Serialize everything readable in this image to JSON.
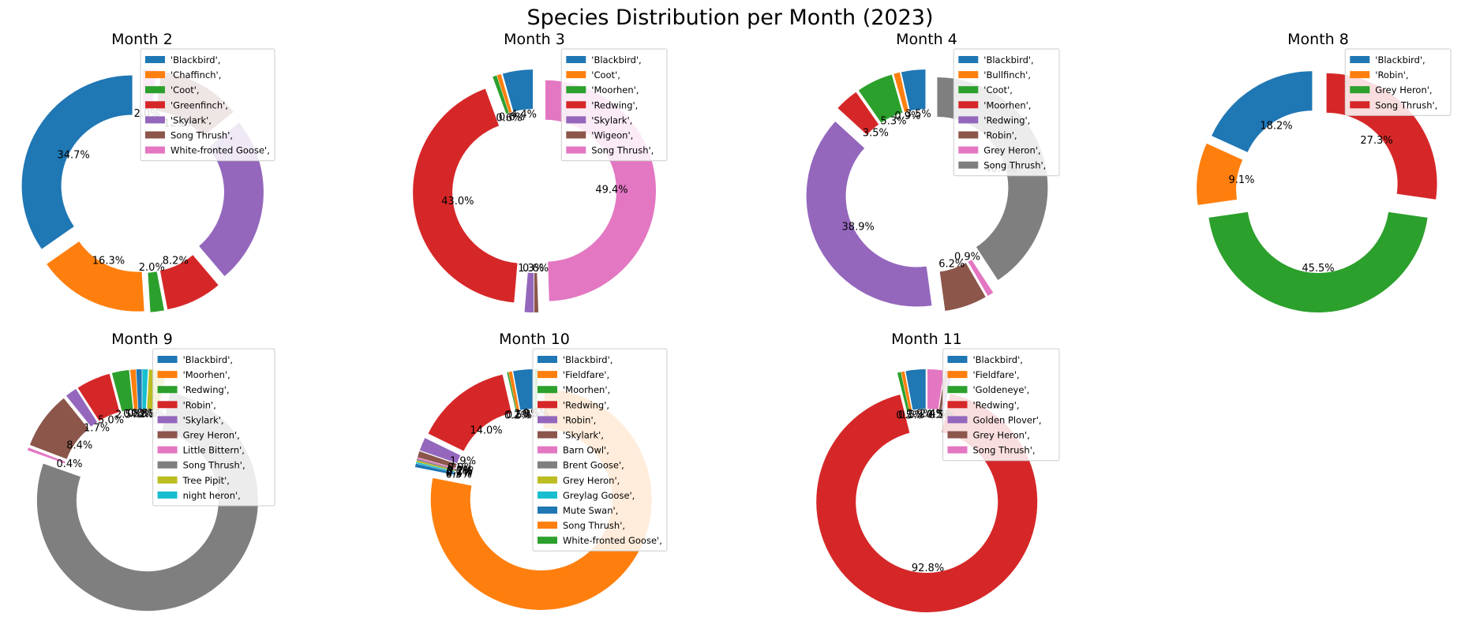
{
  "figure": {
    "title": "Species Distribution per Month (2023)"
  },
  "chart_data": [
    {
      "type": "pie",
      "title": "Month 2",
      "labels": [
        "'Blackbird',",
        "'Chaffinch',",
        "'Coot',",
        "'Greenfinch',",
        "'Skylark',",
        "Song Thrush',",
        "White-fronted Goose',"
      ],
      "values": [
        34.7,
        16.3,
        2.0,
        8.2,
        24.6,
        12.2,
        2.0
      ],
      "pct_labels": [
        "34.7%",
        "16.3%",
        "2.0%",
        "8.2%",
        "",
        "12.2%",
        "2.0%"
      ],
      "legend": "upper-right",
      "donut": true
    },
    {
      "type": "pie",
      "title": "Month 3",
      "labels": [
        "'Blackbird',",
        "'Coot',",
        "'Moorhen',",
        "'Redwing',",
        "'Skylark',",
        "'Wigeon',",
        "Song Thrush',"
      ],
      "values": [
        4.4,
        0.6,
        0.6,
        43.0,
        1.3,
        0.6,
        49.4
      ],
      "pct_labels": [
        "4.4%",
        "0.6%",
        "0.6%",
        "43.0%",
        "1.3%",
        "0.6%",
        "49.4%"
      ],
      "legend": "upper-right",
      "donut": true
    },
    {
      "type": "pie",
      "title": "Month 4",
      "labels": [
        "'Blackbird',",
        "'Bullfinch',",
        "'Coot',",
        "'Moorhen',",
        "'Redwing',",
        "'Robin',",
        "Grey Heron',",
        "Song Thrush',"
      ],
      "values": [
        3.5,
        0.9,
        5.3,
        3.5,
        38.9,
        6.2,
        0.9,
        40.7
      ],
      "pct_labels": [
        "3.5%",
        "0.9%",
        "5.3%",
        "3.5%",
        "38.9%",
        "6.2%",
        "0.9%",
        "40.7%"
      ],
      "legend": "upper-right",
      "donut": true
    },
    {
      "type": "pie",
      "title": "Month 8",
      "labels": [
        "'Blackbird',",
        "'Robin',",
        "Grey Heron',",
        "Song Thrush',"
      ],
      "values": [
        18.2,
        9.1,
        45.5,
        27.3
      ],
      "pct_labels": [
        "18.2%",
        "9.1%",
        "45.5%",
        "27.3%"
      ],
      "legend": "upper-right",
      "donut": true
    },
    {
      "type": "pie",
      "title": "Month 9",
      "labels": [
        "'Blackbird',",
        "'Moorhen',",
        "'Redwing',",
        "'Robin',",
        "'Skylark',",
        "Grey Heron',",
        "Little Bittern',",
        "Song Thrush',",
        "Tree Pipit',",
        "night heron',"
      ],
      "values": [
        0.8,
        0.8,
        2.5,
        5.0,
        1.7,
        8.4,
        0.4,
        77.1,
        2.5,
        0.8
      ],
      "pct_labels": [
        "0.8%",
        "0.8%",
        "2.5%",
        "5.0%",
        "1.7%",
        "8.4%",
        "0.4%",
        "",
        "2.5%",
        "0.8%"
      ],
      "legend": "upper-right",
      "donut": true
    },
    {
      "type": "pie",
      "title": "Month 10",
      "labels": [
        "'Blackbird',",
        "'Fieldfare',",
        "'Moorhen',",
        "'Redwing',",
        "'Robin',",
        "'Skylark',",
        "Barn Owl',",
        "Brent Goose',",
        "Grey Heron',",
        "Greylag Goose',",
        "Mute Swan',",
        "Song Thrush',",
        "White-fronted Goose',"
      ],
      "values": [
        2.9,
        0.5,
        0.2,
        14.0,
        1.9,
        0.9,
        0.2,
        0.2,
        0.2,
        0.2,
        0.5,
        76.9,
        0.5
      ],
      "pct_labels": [
        "2.9%",
        "0.5%",
        "0.2%",
        "14.0%",
        "1.9%",
        "0.9%",
        "0.2%",
        "0.2%",
        "0.2%",
        "0.2%",
        "0.5%",
        "",
        "0.5%"
      ],
      "legend": "upper-right",
      "donut": true
    },
    {
      "type": "pie",
      "title": "Month 11",
      "labels": [
        "'Blackbird',",
        "'Fieldfare',",
        "'Goldeneye',",
        "'Redwing',",
        "Golden Plover',",
        "Grey Heron',",
        "Song Thrush',"
      ],
      "values": [
        2.9,
        0.5,
        0.5,
        92.8,
        0.5,
        0.5,
        2.4
      ],
      "pct_labels": [
        "2.9%",
        "0.5%",
        "0.5%",
        "92.8%",
        "0.5%",
        "0.5%",
        "2.4%"
      ],
      "legend": "upper-right",
      "donut": true
    }
  ],
  "colors": {
    "palette": [
      "#1f77b4",
      "#ff7f0e",
      "#2ca02c",
      "#d62728",
      "#9467bd",
      "#8c564b",
      "#e377c2",
      "#7f7f7f",
      "#bcbd22",
      "#17becf"
    ]
  }
}
